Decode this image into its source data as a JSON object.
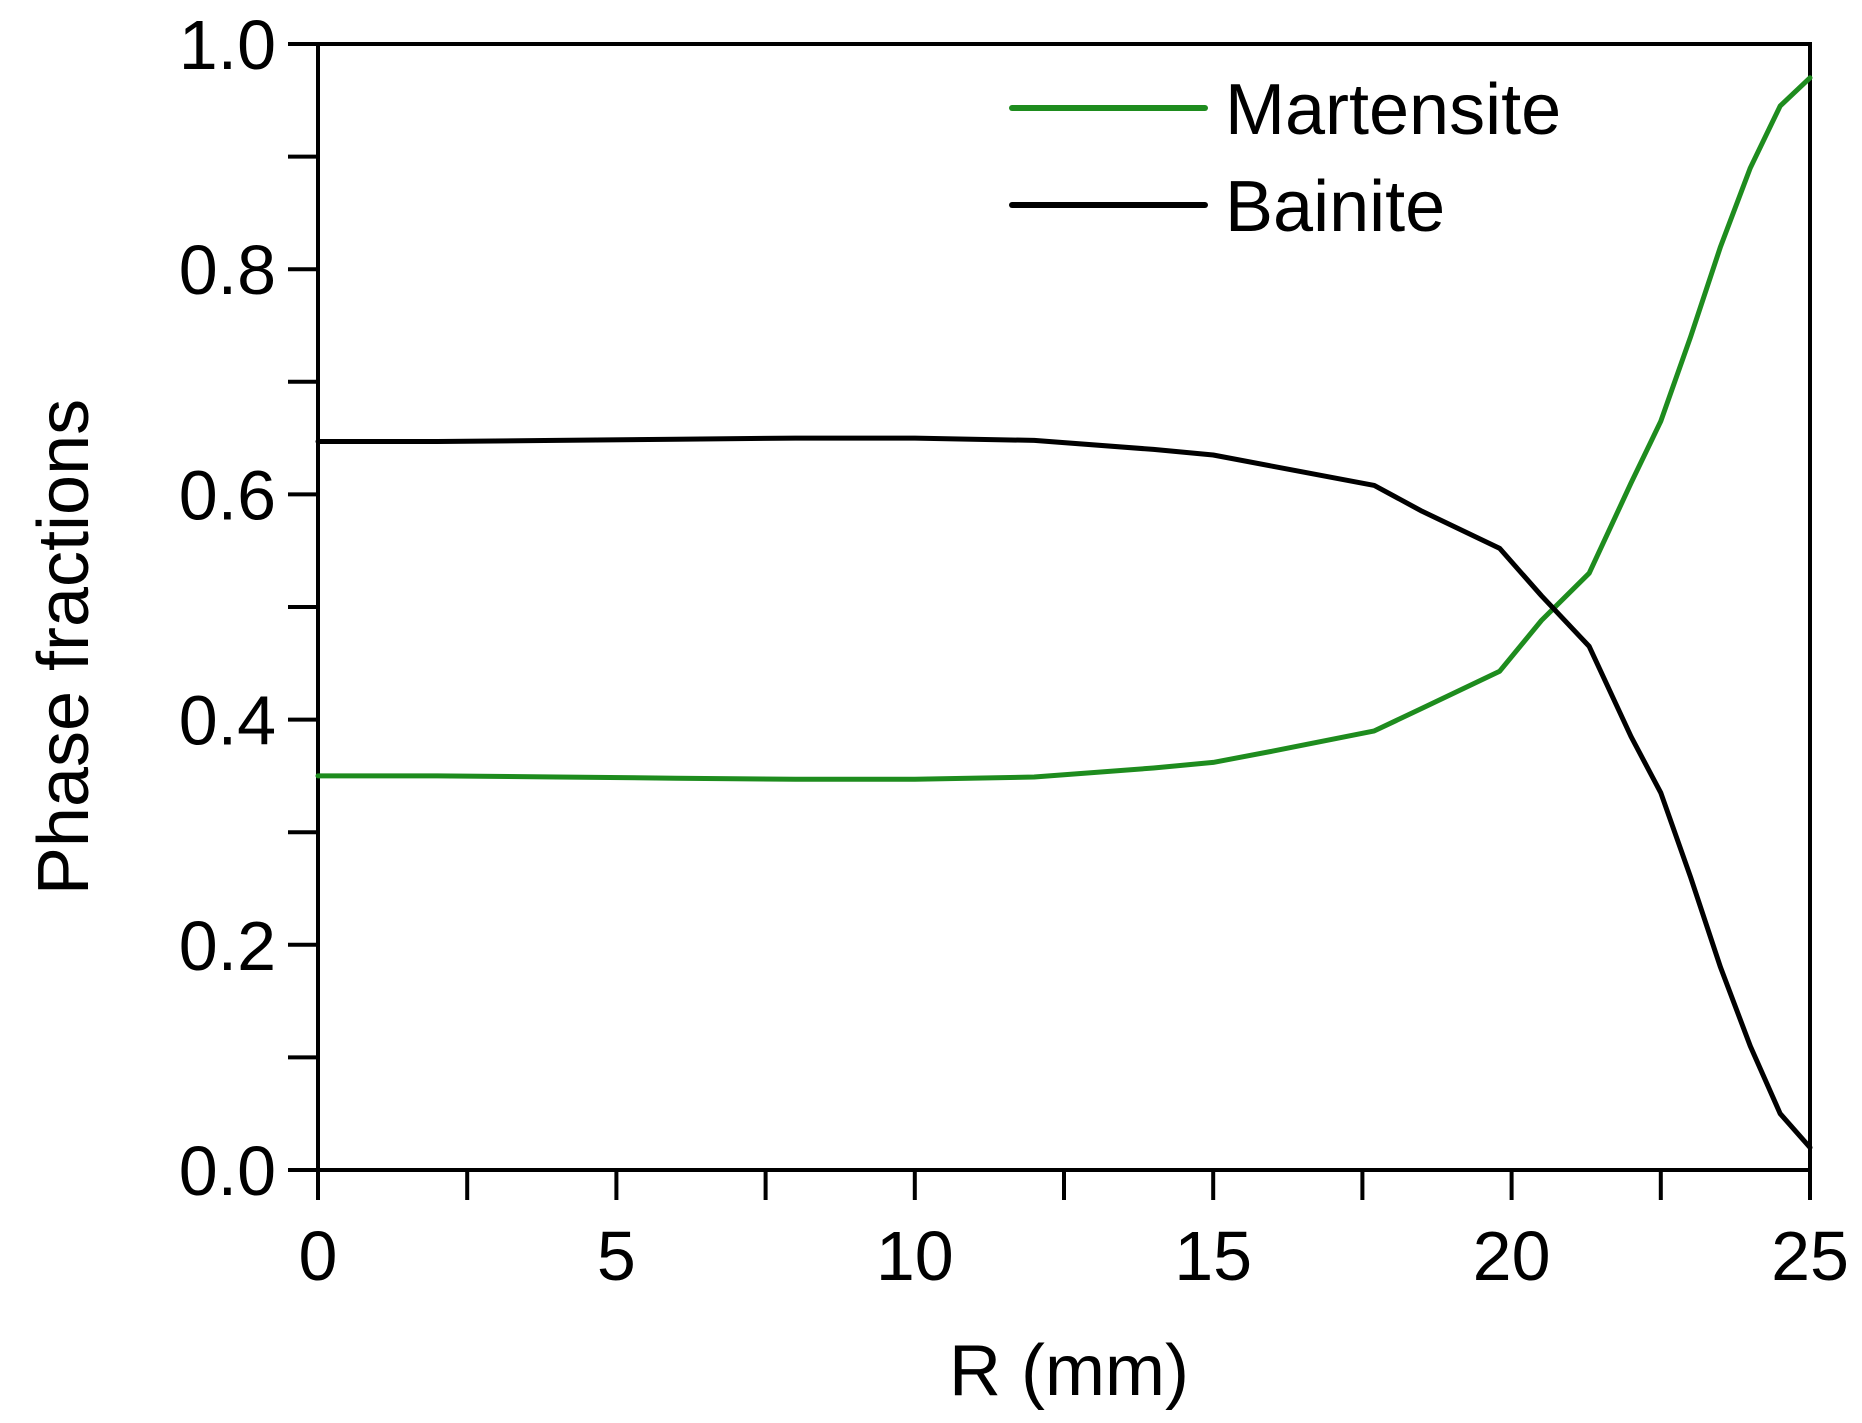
{
  "chart_data": {
    "type": "line",
    "title": "",
    "xlabel": "R (mm)",
    "ylabel": "Phase fractions",
    "xlim": [
      0,
      25
    ],
    "ylim": [
      0,
      1.0
    ],
    "x_ticks": [
      0,
      5,
      10,
      15,
      20,
      25
    ],
    "x_tick_labels": [
      "0",
      "5",
      "10",
      "15",
      "20",
      "25"
    ],
    "x_minor_ticks": [
      2.5,
      7.5,
      12.5,
      17.5,
      22.5
    ],
    "y_ticks": [
      0,
      0.2,
      0.4,
      0.6,
      0.8,
      1.0
    ],
    "y_tick_labels": [
      "0.0",
      "0.2",
      "0.4",
      "0.6",
      "0.8",
      "1.0"
    ],
    "y_minor_ticks": [
      0.1,
      0.3,
      0.5,
      0.7,
      0.9
    ],
    "grid": false,
    "legend_position": "top-right",
    "series": [
      {
        "name": "Martensite",
        "color": "#1e8c1e",
        "x": [
          0,
          2,
          4,
          6,
          8,
          10,
          12,
          14,
          15,
          16,
          17.7,
          18.5,
          19.8,
          20.5,
          21.3,
          22,
          22.5,
          23,
          23.5,
          24,
          24.5,
          25
        ],
        "y": [
          0.35,
          0.35,
          0.349,
          0.348,
          0.347,
          0.347,
          0.349,
          0.357,
          0.362,
          0.372,
          0.39,
          0.41,
          0.443,
          0.488,
          0.53,
          0.61,
          0.665,
          0.74,
          0.82,
          0.89,
          0.945,
          0.97
        ]
      },
      {
        "name": "Bainite",
        "color": "#000000",
        "x": [
          0,
          2,
          4,
          6,
          8,
          10,
          12,
          14,
          15,
          16,
          17.7,
          18.5,
          19.8,
          20.5,
          21.3,
          22,
          22.5,
          23,
          23.5,
          24,
          24.5,
          25
        ],
        "y": [
          0.647,
          0.647,
          0.648,
          0.649,
          0.65,
          0.65,
          0.648,
          0.64,
          0.635,
          0.625,
          0.608,
          0.585,
          0.552,
          0.51,
          0.465,
          0.385,
          0.335,
          0.26,
          0.18,
          0.11,
          0.05,
          0.02
        ]
      }
    ]
  }
}
